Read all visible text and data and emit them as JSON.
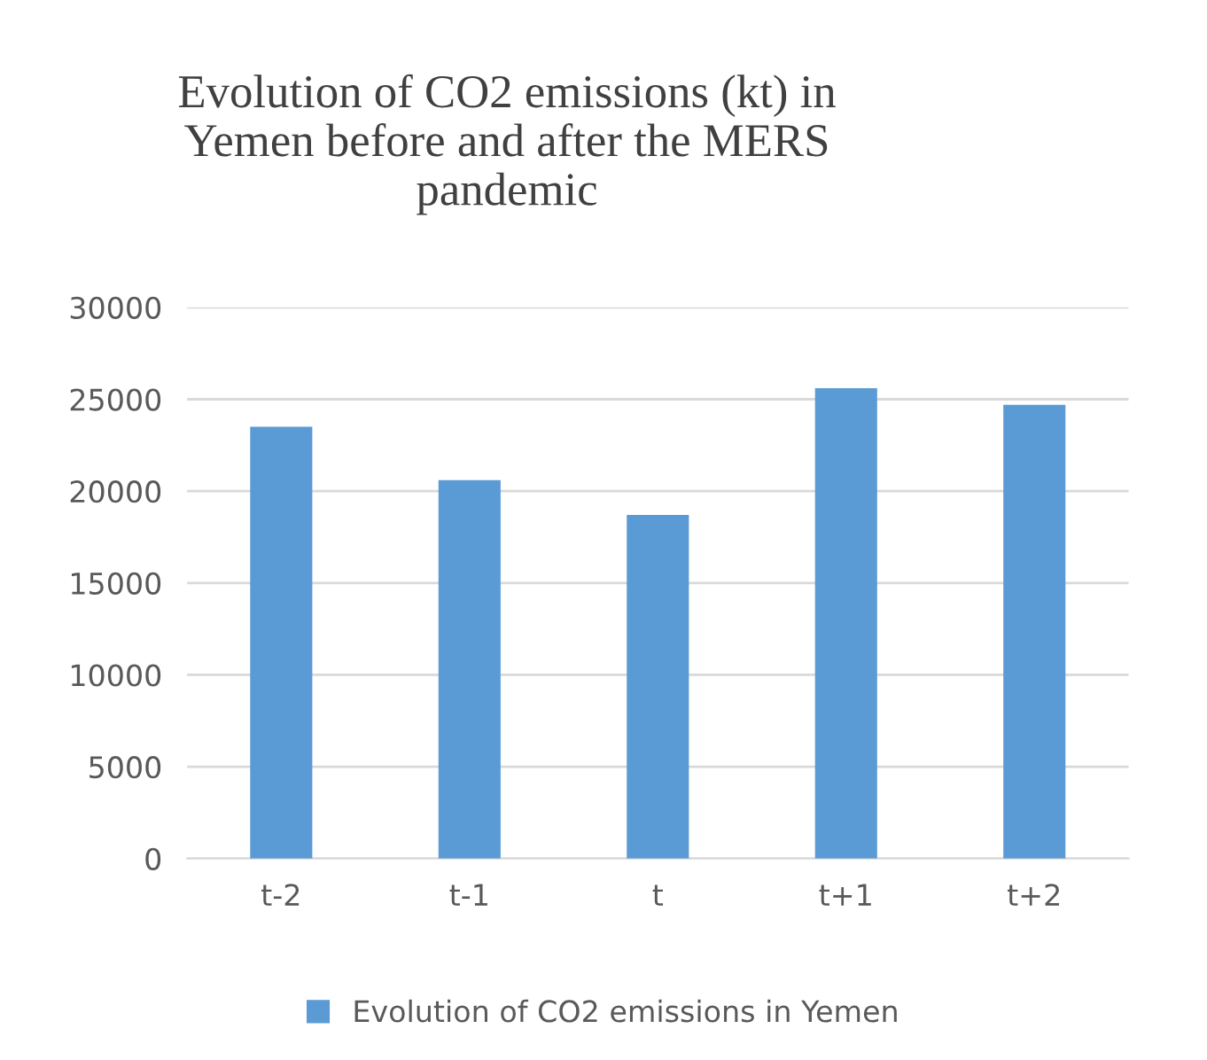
{
  "chart_data": {
    "type": "bar",
    "title": "Evolution of CO2 emissions (kt) in\nYemen before and after the MERS\npandemic",
    "categories": [
      "t-2",
      "t-1",
      "t",
      "t+1",
      "t+2"
    ],
    "series": [
      {
        "name": "Evolution of CO2 emissions in Yemen",
        "color": "#5b9bd5",
        "values": [
          23500,
          20600,
          18700,
          25600,
          24700
        ]
      }
    ],
    "ylim": [
      0,
      30000
    ],
    "yticks": [
      0,
      5000,
      10000,
      15000,
      20000,
      25000,
      30000
    ],
    "grid": "y",
    "legend": "bottom"
  }
}
